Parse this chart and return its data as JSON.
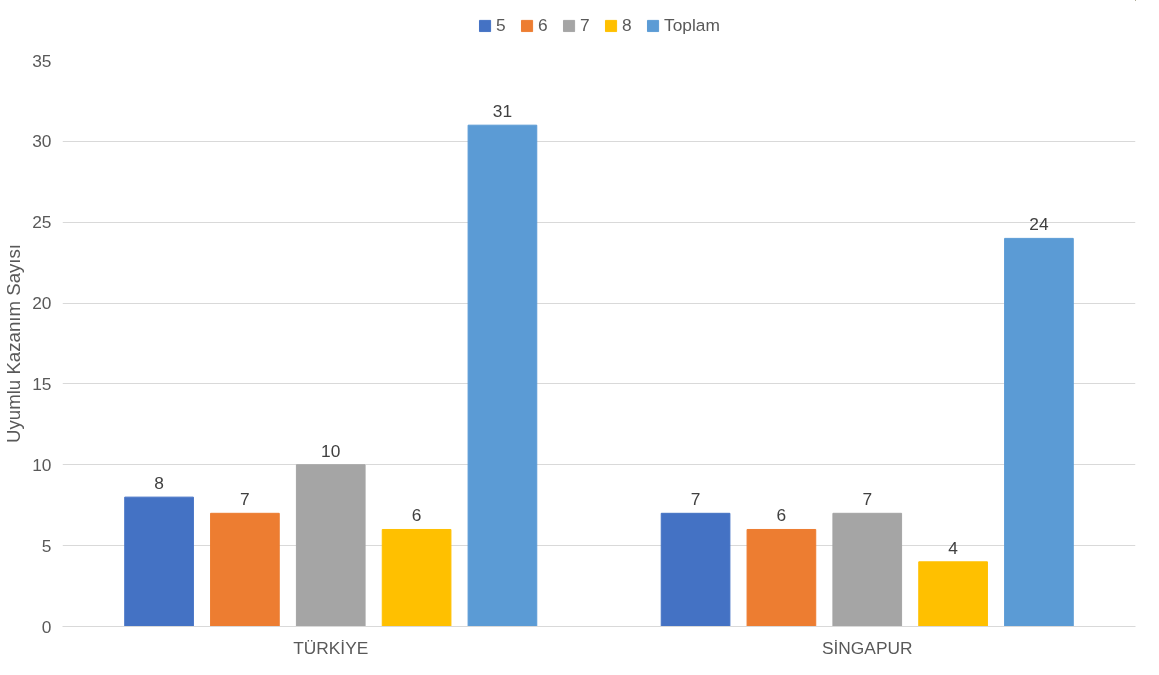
{
  "chart_data": {
    "type": "bar",
    "ylabel": "Uyumlu Kazanım Sayısı",
    "categories": [
      "TÜRKİYE",
      "SİNGAPUR"
    ],
    "series": [
      {
        "name": "5",
        "color": "#4472c4",
        "values": [
          8,
          7
        ]
      },
      {
        "name": "6",
        "color": "#ed7d31",
        "values": [
          7,
          6
        ]
      },
      {
        "name": "7",
        "color": "#a5a5a5",
        "values": [
          10,
          7
        ]
      },
      {
        "name": "8",
        "color": "#ffc000",
        "values": [
          6,
          4
        ]
      },
      {
        "name": "Toplam",
        "color": "#5b9bd5",
        "values": [
          31,
          24
        ]
      }
    ],
    "ylim": [
      0,
      35
    ],
    "yticks": [
      0,
      5,
      10,
      15,
      20,
      25,
      30,
      35
    ],
    "grid": "y",
    "legend": "top",
    "data_labels": true
  }
}
